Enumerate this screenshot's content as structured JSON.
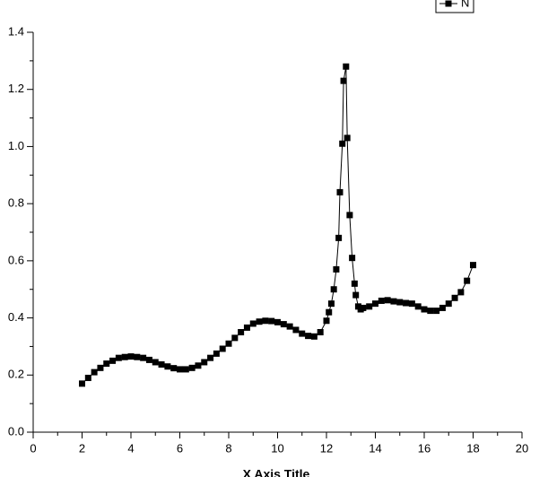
{
  "chart_data": {
    "type": "line",
    "x_label": "X Axis Title",
    "x": [
      2,
      2.25,
      2.5,
      2.75,
      3,
      3.25,
      3.5,
      3.75,
      4,
      4.25,
      4.5,
      4.75,
      5,
      5.25,
      5.5,
      5.75,
      6,
      6.25,
      6.5,
      6.75,
      7,
      7.25,
      7.5,
      7.75,
      8,
      8.25,
      8.5,
      8.75,
      9,
      9.25,
      9.5,
      9.75,
      10,
      10.25,
      10.5,
      10.75,
      11,
      11.25,
      11.5,
      11.75,
      12,
      12.1,
      12.2,
      12.3,
      12.4,
      12.5,
      12.55,
      12.65,
      12.7,
      12.8,
      12.85,
      12.95,
      13.05,
      13.15,
      13.2,
      13.3,
      13.4,
      13.5,
      13.75,
      14,
      14.25,
      14.5,
      14.75,
      15,
      15.25,
      15.5,
      15.75,
      16,
      16.25,
      16.5,
      16.75,
      17,
      17.25,
      17.5,
      17.75,
      18
    ],
    "series": [
      {
        "name": "N",
        "color": "#000000",
        "values": [
          0.17,
          0.19,
          0.21,
          0.225,
          0.24,
          0.25,
          0.26,
          0.263,
          0.265,
          0.263,
          0.26,
          0.253,
          0.245,
          0.237,
          0.23,
          0.224,
          0.22,
          0.22,
          0.225,
          0.233,
          0.245,
          0.26,
          0.275,
          0.292,
          0.31,
          0.33,
          0.35,
          0.366,
          0.38,
          0.387,
          0.39,
          0.389,
          0.385,
          0.378,
          0.37,
          0.358,
          0.345,
          0.337,
          0.335,
          0.35,
          0.39,
          0.42,
          0.45,
          0.5,
          0.57,
          0.68,
          0.84,
          1.01,
          1.23,
          1.28,
          1.03,
          0.76,
          0.61,
          0.52,
          0.48,
          0.44,
          0.43,
          0.435,
          0.44,
          0.45,
          0.46,
          0.462,
          0.458,
          0.455,
          0.452,
          0.45,
          0.44,
          0.43,
          0.425,
          0.425,
          0.435,
          0.45,
          0.47,
          0.49,
          0.53,
          0.585
        ]
      }
    ],
    "xlim": [
      0,
      20
    ],
    "xticks": [
      0,
      2,
      4,
      6,
      8,
      10,
      12,
      14,
      16,
      18,
      20
    ],
    "ylim": [
      0,
      1.4
    ],
    "yticks": [
      {
        "value": 0,
        "label": "0.0"
      },
      0.2,
      0.4,
      0.6,
      0.8,
      {
        "value": 1,
        "label": "1.0"
      },
      1.2,
      1.4
    ],
    "legend": "top-right"
  }
}
